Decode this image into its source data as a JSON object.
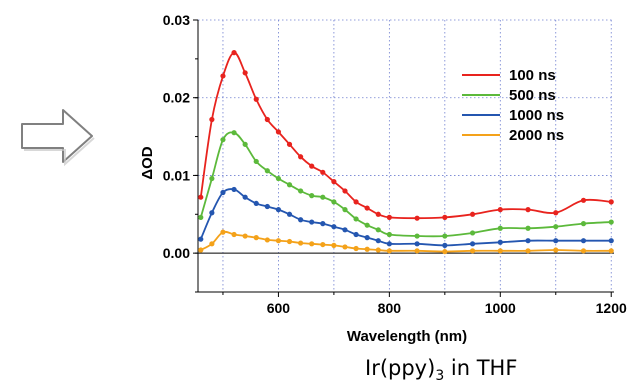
{
  "chart_data": {
    "type": "line",
    "xlabel": "Wavelength (nm)",
    "ylabel": "ΔOD",
    "xlim": [
      455,
      1205
    ],
    "ylim": [
      -0.005,
      0.03
    ],
    "xticks": [
      600,
      800,
      1000,
      1200
    ],
    "xtick_labels": [
      "600",
      "800",
      "1000",
      "1200"
    ],
    "yticks": [
      0.0,
      0.01,
      0.02,
      0.03
    ],
    "ytick_labels": [
      "0.00",
      "0.01",
      "0.02",
      "0.03"
    ],
    "grid": "dotted",
    "legend_position": "top-right",
    "x": [
      460,
      480,
      500,
      520,
      540,
      560,
      580,
      600,
      620,
      640,
      660,
      680,
      700,
      720,
      740,
      760,
      780,
      800,
      850,
      900,
      950,
      1000,
      1050,
      1100,
      1150,
      1200
    ],
    "series": [
      {
        "name": "100 ns",
        "color": "#e8231e",
        "values": [
          0.0072,
          0.0172,
          0.0228,
          0.0258,
          0.0232,
          0.0198,
          0.0172,
          0.0156,
          0.014,
          0.0124,
          0.0112,
          0.0104,
          0.0092,
          0.008,
          0.0066,
          0.0058,
          0.005,
          0.0046,
          0.0045,
          0.0046,
          0.005,
          0.0056,
          0.0056,
          0.0052,
          0.0068,
          0.0066
        ]
      },
      {
        "name": "500 ns",
        "color": "#5cb93b",
        "values": [
          0.0046,
          0.0096,
          0.0146,
          0.0155,
          0.014,
          0.0118,
          0.0106,
          0.0096,
          0.0088,
          0.008,
          0.0074,
          0.0072,
          0.0066,
          0.0056,
          0.0044,
          0.0036,
          0.003,
          0.0024,
          0.0022,
          0.0022,
          0.0026,
          0.0032,
          0.0032,
          0.0034,
          0.0038,
          0.004
        ]
      },
      {
        "name": "1000 ns",
        "color": "#2456b0",
        "values": [
          0.0018,
          0.0052,
          0.0078,
          0.0082,
          0.0072,
          0.0064,
          0.006,
          0.0056,
          0.005,
          0.0043,
          0.004,
          0.0038,
          0.0034,
          0.003,
          0.0024,
          0.002,
          0.0016,
          0.0012,
          0.0012,
          0.001,
          0.0012,
          0.0014,
          0.0016,
          0.0016,
          0.0016,
          0.0016
        ]
      },
      {
        "name": "2000 ns",
        "color": "#f4a21a",
        "values": [
          0.0004,
          0.0012,
          0.0027,
          0.0024,
          0.0022,
          0.002,
          0.0017,
          0.0016,
          0.0015,
          0.0013,
          0.0012,
          0.0011,
          0.001,
          0.0008,
          0.0006,
          0.0005,
          0.0004,
          0.0003,
          0.0003,
          0.0002,
          0.0003,
          0.0003,
          0.0003,
          0.0004,
          0.0003,
          0.0003
        ]
      }
    ]
  },
  "caption": {
    "prefix": "Ir(ppy)",
    "subscript": "3",
    "suffix": " in THF"
  },
  "decoration": {
    "arrow_icon": "right-arrow-icon",
    "arrow_fill": "#ffffff",
    "arrow_stroke": "#7f7f7f"
  }
}
